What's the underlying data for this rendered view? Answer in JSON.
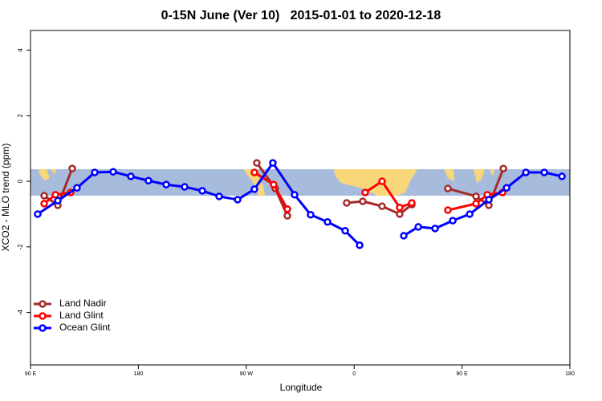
{
  "chart_data": {
    "type": "line",
    "title": "0-15N June (Ver 10)   2015-01-01 to 2020-12-18",
    "xlabel": "Longitude",
    "ylabel": "XCO2 - MLO trend (ppm)",
    "xlim": [
      90,
      540
    ],
    "ylim": [
      -5.6,
      4.6
    ],
    "xticks": [
      {
        "value": 90,
        "label": "90 E"
      },
      180,
      {
        "value": 270,
        "label": "90 W"
      },
      {
        "value": 360,
        "label": "0"
      },
      {
        "value": 450,
        "label": "90 E"
      },
      {
        "value": 540,
        "label": "180"
      }
    ],
    "yticks": [
      4,
      2,
      0,
      -2,
      -4
    ],
    "legend": "bottomleft",
    "grid": false,
    "series": [
      {
        "name": "Land Nadir",
        "color": "#a52a2a",
        "x": [
          101.4,
          112.8,
          124.8,
          null,
          278.8,
          294.2,
          304.3,
          null,
          353.8,
          367.2,
          383.3,
          398.0,
          408.1,
          null,
          438.2,
          461.7,
          472.4,
          484.5
        ],
        "values": [
          -0.44,
          -0.73,
          0.39,
          null,
          0.56,
          -0.22,
          -1.05,
          null,
          -0.66,
          -0.61,
          -0.76,
          -1.0,
          -0.71,
          null,
          -0.22,
          -0.46,
          -0.73,
          0.39
        ]
      },
      {
        "name": "Land Glint",
        "color": "#ff0000",
        "x": [
          101.4,
          110.8,
          123.5,
          null,
          276.8,
          292.9,
          304.3,
          null,
          369.2,
          383.3,
          398.0,
          408.1,
          null,
          438.2,
          461.7,
          471.1,
          483.8
        ],
        "values": [
          -0.68,
          -0.41,
          -0.34,
          null,
          0.27,
          -0.1,
          -0.85,
          null,
          -0.34,
          0,
          -0.8,
          -0.66,
          null,
          -0.88,
          -0.68,
          -0.41,
          -0.34
        ]
      },
      {
        "name": "Ocean Glint",
        "color": "#0000ff",
        "x": [
          96.0,
          112.8,
          128.8,
          143.6,
          159.0,
          173.7,
          188.4,
          203.2,
          218.6,
          233.3,
          247.4,
          262.8,
          276.8,
          292.2,
          310.3,
          323.7,
          337.8,
          352.5,
          364.6,
          null,
          401.4,
          413.5,
          427.5,
          442.3,
          456.4,
          472.4,
          487.2,
          503.3,
          518.6,
          533.4
        ],
        "values": [
          -1.0,
          -0.59,
          -0.2,
          0.27,
          0.29,
          0.15,
          0.02,
          -0.1,
          -0.17,
          -0.29,
          -0.46,
          -0.56,
          -0.24,
          0.56,
          -0.41,
          -1.02,
          -1.24,
          -1.51,
          -1.95,
          null,
          -1.66,
          -1.39,
          -1.44,
          -1.2,
          -1.0,
          -0.56,
          -0.2,
          0.27,
          0.27,
          0.15
        ]
      }
    ]
  }
}
